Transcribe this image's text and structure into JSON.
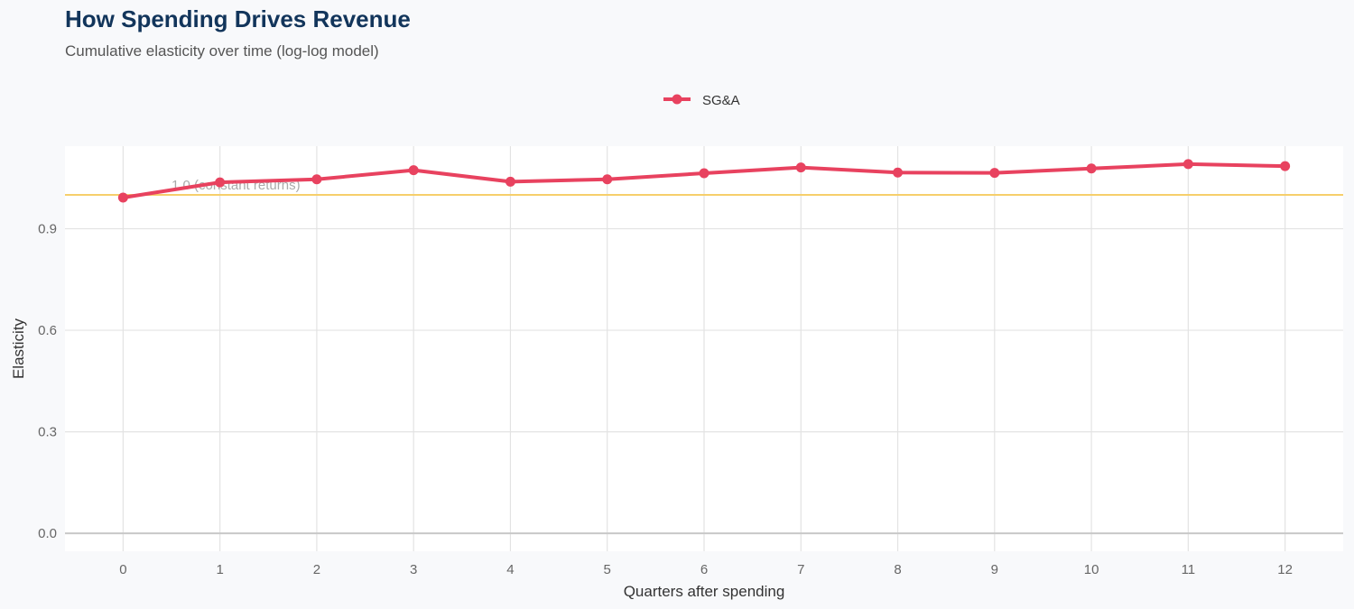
{
  "chart_data": {
    "type": "line",
    "title": "How Spending Drives Revenue",
    "subtitle": "Cumulative elasticity over time (log-log model)",
    "xlabel": "Quarters after spending",
    "ylabel": "Elasticity",
    "x": [
      0,
      1,
      2,
      3,
      4,
      5,
      6,
      7,
      8,
      9,
      10,
      11,
      12
    ],
    "x_ticks": [
      "0",
      "1",
      "2",
      "3",
      "4",
      "5",
      "6",
      "7",
      "8",
      "9",
      "10",
      "11",
      "12"
    ],
    "y_ticks": [
      "0.0",
      "0.3",
      "0.6",
      "0.9"
    ],
    "y_tick_values": [
      0,
      0.3,
      0.6,
      0.9
    ],
    "ylim": [
      -0.053,
      1.144
    ],
    "xlim": [
      -0.6,
      12.6
    ],
    "grid": true,
    "legend": "top",
    "series": [
      {
        "name": "SG&A",
        "color": "#e8425f",
        "values": [
          0.992,
          1.037,
          1.046,
          1.073,
          1.039,
          1.046,
          1.064,
          1.081,
          1.066,
          1.065,
          1.078,
          1.091,
          1.085
        ]
      }
    ],
    "reference_line": {
      "y": 1.0,
      "label": "1.0 (constant returns)",
      "color": "#f6cf6b"
    }
  }
}
